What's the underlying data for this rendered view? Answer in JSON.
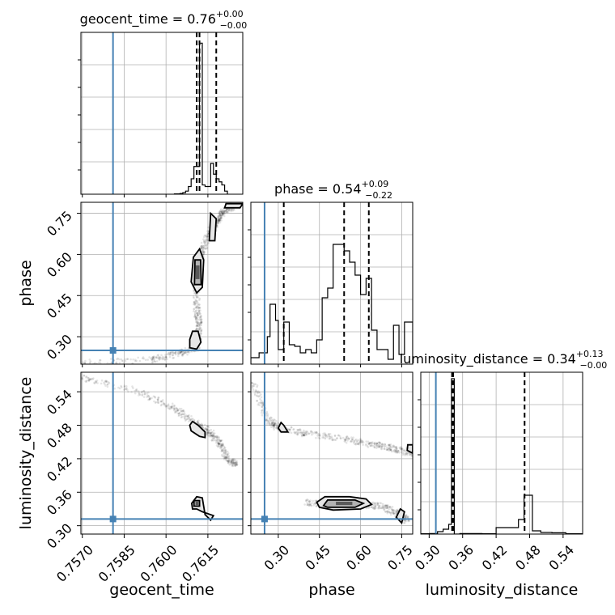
{
  "chart_data": {
    "type": "corner",
    "parameters": [
      "geocent_time",
      "phase",
      "luminosity_distance"
    ],
    "titles": {
      "geocent_time": {
        "label": "geocent_time",
        "median": "0.76",
        "plus": "+0.00",
        "minus": "−0.00"
      },
      "phase": {
        "label": "phase",
        "median": "0.54",
        "plus": "+0.09",
        "minus": "−0.22"
      },
      "luminosity_distance": {
        "label": "luminosity_distance",
        "median": "0.34",
        "plus": "+0.13",
        "minus": "−0.00"
      }
    },
    "ranges": {
      "geocent_time": [
        0.75695,
        0.76275
      ],
      "phase": [
        0.2,
        0.79
      ],
      "luminosity_distance": [
        0.285,
        0.575
      ]
    },
    "ticks": {
      "geocent_time": [
        {
          "v": 0.757,
          "label": "0.7570"
        },
        {
          "v": 0.7585,
          "label": "0.7585"
        },
        {
          "v": 0.76,
          "label": "0.7600"
        },
        {
          "v": 0.7615,
          "label": "0.7615"
        }
      ],
      "phase": [
        {
          "v": 0.3,
          "label": "0.30"
        },
        {
          "v": 0.45,
          "label": "0.45"
        },
        {
          "v": 0.6,
          "label": "0.60"
        },
        {
          "v": 0.75,
          "label": "0.75"
        }
      ],
      "luminosity_distance": [
        {
          "v": 0.3,
          "label": "0.30"
        },
        {
          "v": 0.36,
          "label": "0.36"
        },
        {
          "v": 0.42,
          "label": "0.42"
        },
        {
          "v": 0.48,
          "label": "0.48"
        },
        {
          "v": 0.54,
          "label": "0.54"
        }
      ]
    },
    "truths": {
      "geocent_time": 0.7581,
      "phase": 0.25,
      "luminosity_distance": 0.312
    },
    "quantiles": {
      "geocent_time": [
        0.7611,
        0.7612,
        0.7618
      ],
      "phase": [
        0.32,
        0.54,
        0.63
      ],
      "luminosity_distance": [
        0.341,
        0.343,
        0.471
      ]
    },
    "histograms": {
      "geocent_time": {
        "edges": [
          0.7603,
          0.7604,
          0.7605,
          0.7606,
          0.7607,
          0.7608,
          0.7609,
          0.761,
          0.7611,
          0.7612,
          0.7613,
          0.7614,
          0.7615,
          0.7616,
          0.7617,
          0.7618,
          0.7619,
          0.762,
          0.7621,
          0.7622
        ],
        "counts": [
          0.002,
          0.002,
          0.005,
          0.01,
          0.02,
          0.05,
          0.1,
          0.18,
          0.18,
          0.98,
          0.06,
          0.05,
          0.05,
          0.2,
          0.13,
          0.1,
          0.08,
          0.06,
          0.02
        ],
        "ymax": 1.05
      },
      "phase": {
        "edges": [
          0.2,
          0.23,
          0.26,
          0.27,
          0.29,
          0.3,
          0.32,
          0.34,
          0.36,
          0.38,
          0.4,
          0.42,
          0.44,
          0.46,
          0.48,
          0.5,
          0.52,
          0.54,
          0.56,
          0.58,
          0.6,
          0.62,
          0.64,
          0.66,
          0.68,
          0.7,
          0.72,
          0.74,
          0.76,
          0.79
        ],
        "counts": [
          0.04,
          0.07,
          0.17,
          0.37,
          0.27,
          0.09,
          0.26,
          0.12,
          0.11,
          0.07,
          0.09,
          0.07,
          0.15,
          0.41,
          0.47,
          0.74,
          0.74,
          0.7,
          0.63,
          0.55,
          0.43,
          0.53,
          0.21,
          0.09,
          0.09,
          0.03,
          0.24,
          0.06,
          0.26
        ],
        "ymax": 1.0
      },
      "luminosity_distance": {
        "edges": [
          0.285,
          0.3,
          0.315,
          0.325,
          0.335,
          0.34,
          0.345,
          0.355,
          0.375,
          0.395,
          0.42,
          0.44,
          0.46,
          0.47,
          0.485,
          0.5,
          0.52,
          0.545,
          0.575
        ],
        "counts": [
          0.002,
          0.003,
          0.015,
          0.03,
          0.06,
          0.96,
          0.0,
          0.003,
          0.003,
          0.002,
          0.04,
          0.04,
          0.09,
          0.24,
          0.02,
          0.01,
          0.008,
          0.002
        ],
        "ymax": 1.0
      }
    },
    "pairs": [
      {
        "x": "geocent_time",
        "y": "phase",
        "ridge": [
          [
            0.757,
            0.203
          ],
          [
            0.7595,
            0.215
          ],
          [
            0.7605,
            0.24
          ],
          [
            0.7611,
            0.26
          ],
          [
            0.7612,
            0.34
          ],
          [
            0.7611,
            0.4
          ],
          [
            0.7611,
            0.5
          ],
          [
            0.7612,
            0.56
          ],
          [
            0.7613,
            0.62
          ],
          [
            0.7616,
            0.68
          ],
          [
            0.7618,
            0.72
          ],
          [
            0.762,
            0.75
          ],
          [
            0.7625,
            0.78
          ]
        ],
        "levels": [
          [
            [
              0.76085,
              0.29
            ],
            [
              0.76095,
              0.32
            ],
            [
              0.76115,
              0.32
            ],
            [
              0.76125,
              0.28
            ],
            [
              0.7611,
              0.255
            ],
            [
              0.76085,
              0.26
            ]
          ],
          [
            [
              0.7609,
              0.5
            ],
            [
              0.76098,
              0.59
            ],
            [
              0.7612,
              0.62
            ],
            [
              0.76135,
              0.58
            ],
            [
              0.7613,
              0.48
            ],
            [
              0.7611,
              0.46
            ]
          ],
          [
            [
              0.76155,
              0.65
            ],
            [
              0.7616,
              0.75
            ],
            [
              0.7618,
              0.73
            ],
            [
              0.76175,
              0.65
            ]
          ],
          [
            [
              0.7621,
              0.77
            ],
            [
              0.76215,
              0.785
            ],
            [
              0.76275,
              0.785
            ],
            [
              0.76265,
              0.77
            ]
          ]
        ],
        "inner": [
          [
            [
              0.76102,
              0.49
            ],
            [
              0.76104,
              0.58
            ],
            [
              0.76124,
              0.58
            ],
            [
              0.76126,
              0.49
            ]
          ]
        ],
        "core": [
          [
            [
              0.76106,
              0.51
            ],
            [
              0.76106,
              0.56
            ],
            [
              0.7612,
              0.56
            ],
            [
              0.7612,
              0.51
            ]
          ]
        ]
      },
      {
        "x": "geocent_time",
        "y": "luminosity_distance",
        "ridge": [
          [
            0.757,
            0.565
          ],
          [
            0.759,
            0.54
          ],
          [
            0.7603,
            0.51
          ],
          [
            0.761,
            0.485
          ],
          [
            0.7615,
            0.47
          ],
          [
            0.7619,
            0.45
          ],
          [
            0.7622,
            0.42
          ],
          [
            0.7625,
            0.41
          ]
        ],
        "levels": [
          [
            [
              0.76085,
              0.48
            ],
            [
              0.7609,
              0.47
            ],
            [
              0.7612,
              0.46
            ],
            [
              0.7614,
              0.458
            ],
            [
              0.7614,
              0.468
            ],
            [
              0.76115,
              0.48
            ],
            [
              0.76095,
              0.487
            ]
          ],
          [
            [
              0.76092,
              0.34
            ],
            [
              0.7611,
              0.352
            ],
            [
              0.7613,
              0.35
            ],
            [
              0.7614,
              0.32
            ],
            [
              0.7616,
              0.31
            ],
            [
              0.7617,
              0.318
            ],
            [
              0.7613,
              0.325
            ],
            [
              0.7611,
              0.33
            ],
            [
              0.76095,
              0.33
            ]
          ]
        ],
        "inner": [
          [
            [
              0.761,
              0.335
            ],
            [
              0.761,
              0.345
            ],
            [
              0.7612,
              0.345
            ],
            [
              0.7612,
              0.335
            ]
          ]
        ],
        "core": [
          [
            [
              0.76106,
              0.337
            ],
            [
              0.76106,
              0.343
            ],
            [
              0.76116,
              0.343
            ],
            [
              0.76116,
              0.337
            ]
          ]
        ]
      },
      {
        "x": "phase",
        "y": "luminosity_distance",
        "ridge": [
          [
            0.205,
            0.56
          ],
          [
            0.26,
            0.49
          ],
          [
            0.3,
            0.476
          ],
          [
            0.4,
            0.465
          ],
          [
            0.55,
            0.455
          ],
          [
            0.65,
            0.445
          ],
          [
            0.72,
            0.438
          ],
          [
            0.79,
            0.43
          ]
        ],
        "ridge2": [
          [
            0.4,
            0.342
          ],
          [
            0.5,
            0.338
          ],
          [
            0.6,
            0.337
          ],
          [
            0.68,
            0.335
          ],
          [
            0.74,
            0.32
          ],
          [
            0.77,
            0.31
          ]
        ],
        "levels": [
          [
            [
              0.3,
              0.475
            ],
            [
              0.31,
              0.485
            ],
            [
              0.32,
              0.48
            ],
            [
              0.335,
              0.468
            ],
            [
              0.31,
              0.468
            ]
          ],
          [
            [
              0.77,
              0.435
            ],
            [
              0.772,
              0.445
            ],
            [
              0.79,
              0.445
            ],
            [
              0.79,
              0.43
            ]
          ],
          [
            [
              0.44,
              0.342
            ],
            [
              0.47,
              0.352
            ],
            [
              0.56,
              0.352
            ],
            [
              0.62,
              0.348
            ],
            [
              0.64,
              0.338
            ],
            [
              0.6,
              0.33
            ],
            [
              0.5,
              0.328
            ],
            [
              0.45,
              0.333
            ]
          ],
          [
            [
              0.73,
              0.315
            ],
            [
              0.745,
              0.33
            ],
            [
              0.76,
              0.325
            ],
            [
              0.75,
              0.305
            ]
          ]
        ],
        "inner": [
          [
            [
              0.465,
              0.336
            ],
            [
              0.48,
              0.346
            ],
            [
              0.58,
              0.346
            ],
            [
              0.61,
              0.34
            ],
            [
              0.58,
              0.333
            ],
            [
              0.48,
              0.333
            ]
          ]
        ],
        "core": [
          [
            [
              0.51,
              0.337
            ],
            [
              0.51,
              0.343
            ],
            [
              0.57,
              0.343
            ],
            [
              0.57,
              0.337
            ]
          ]
        ]
      }
    ]
  }
}
